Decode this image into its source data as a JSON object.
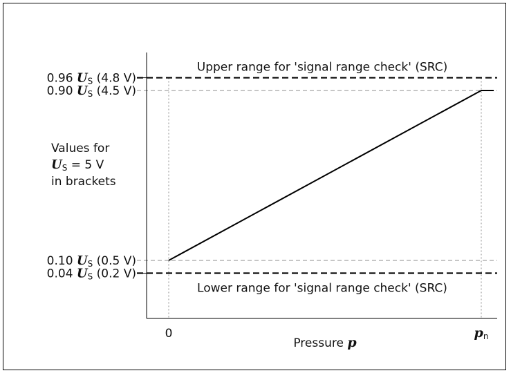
{
  "chart_data": {
    "type": "line",
    "title": "",
    "xlabel": "Pressure",
    "xlabel_symbol": "p",
    "ylabel": "",
    "x_ticks": [
      {
        "label": "0",
        "sub": "",
        "x": 0
      },
      {
        "label": "p",
        "sub": "n",
        "x": 1
      }
    ],
    "y_ticks": [
      {
        "prefix": "0.96 ",
        "symbol": "U",
        "sub": "S",
        "suffix": " (4.8 V)",
        "y": 0.96
      },
      {
        "prefix": "0.90 ",
        "symbol": "U",
        "sub": "S",
        "suffix": " (4.5 V)",
        "y": 0.9
      },
      {
        "prefix": "0.10 ",
        "symbol": "U",
        "sub": "S",
        "suffix": " (0.5 V)",
        "y": 0.1
      },
      {
        "prefix": "0.04 ",
        "symbol": "U",
        "sub": "S",
        "suffix": " (0.2 V)",
        "y": 0.04
      }
    ],
    "xlim": [
      0,
      1
    ],
    "ylim": [
      0.04,
      0.96
    ],
    "series": [
      {
        "x": [
          0,
          1,
          1.04
        ],
        "y": [
          0.1,
          0.9,
          0.9
        ]
      }
    ],
    "thresholds": [
      {
        "y": 0.96,
        "label": "Upper range for 'signal range check' (SRC)",
        "position": "above"
      },
      {
        "y": 0.04,
        "label": "Lower range for 'signal range check' (SRC)",
        "position": "below"
      }
    ],
    "note_lines": [
      {
        "text": "Values for"
      },
      {
        "symbol": "U",
        "sub": "S",
        "text": " = 5 V"
      },
      {
        "text": "in brackets"
      }
    ],
    "grid": false,
    "legend": "none"
  }
}
